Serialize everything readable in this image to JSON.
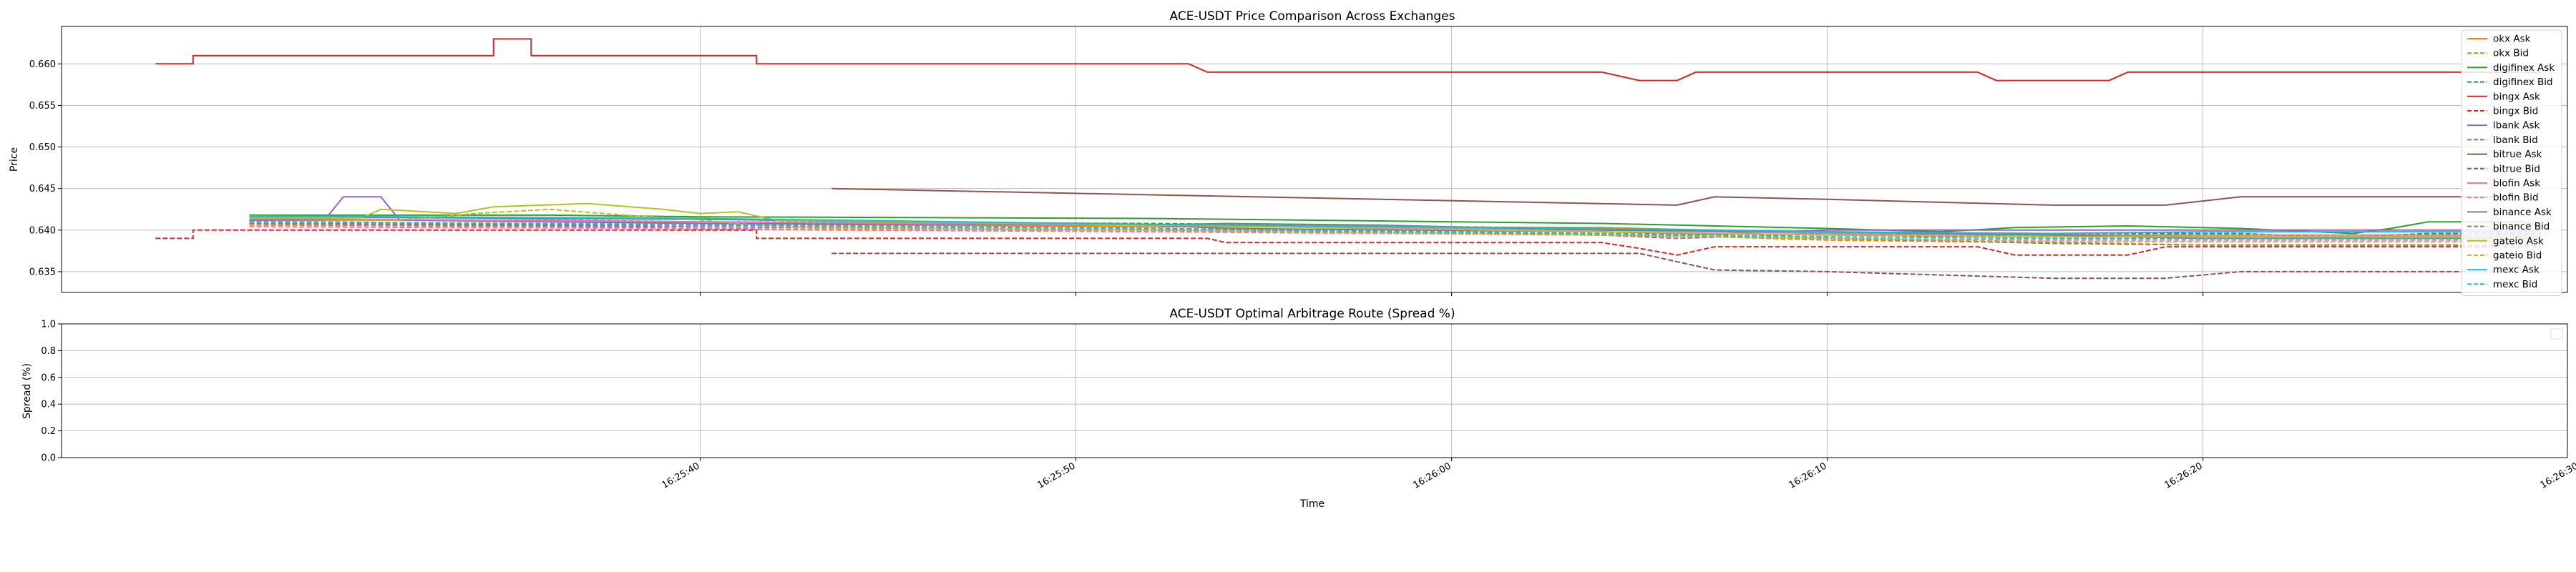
{
  "chart_data": [
    {
      "type": "line",
      "title": "ACE-USDT Price Comparison Across Exchanges",
      "xlabel": "",
      "ylabel": "Price",
      "ylim": [
        0.6325,
        0.6645
      ],
      "xlim_seconds": [
        -17,
        49.7
      ],
      "x_reference_time": "16:25:40",
      "yticks": [
        0.635,
        0.64,
        0.645,
        0.65,
        0.655,
        0.66
      ],
      "ytick_labels": [
        "0.635",
        "0.640",
        "0.645",
        "0.650",
        "0.655",
        "0.660"
      ],
      "grid": true,
      "legend_position": "right",
      "series": [
        {
          "name": "okx Ask",
          "color": "#ff7f0e",
          "dash": false,
          "points": [
            [
              -12,
              0.6412
            ],
            [
              -4,
              0.6412
            ],
            [
              0,
              0.6408
            ],
            [
              12,
              0.6404
            ],
            [
              24,
              0.6403
            ],
            [
              30,
              0.6397
            ],
            [
              36,
              0.6395
            ],
            [
              40,
              0.6392
            ],
            [
              45,
              0.6392
            ],
            [
              49,
              0.6392
            ]
          ]
        },
        {
          "name": "okx Bid",
          "color": "#ff7f0e",
          "dash": true,
          "points": [
            [
              -12,
              0.6406
            ],
            [
              -2,
              0.6404
            ],
            [
              0,
              0.6401
            ],
            [
              12,
              0.6398
            ],
            [
              24,
              0.6396
            ],
            [
              30,
              0.6388
            ],
            [
              36,
              0.6385
            ],
            [
              40,
              0.6382
            ],
            [
              45,
              0.6382
            ],
            [
              49,
              0.6382
            ]
          ]
        },
        {
          "name": "digifinex Ask",
          "color": "#2ca02c",
          "dash": false,
          "points": [
            [
              -12,
              0.6418
            ],
            [
              -4,
              0.6418
            ],
            [
              0,
              0.6416
            ],
            [
              12,
              0.6414
            ],
            [
              24,
              0.6408
            ],
            [
              30,
              0.6402
            ],
            [
              33,
              0.6398
            ],
            [
              35,
              0.6403
            ],
            [
              38,
              0.6405
            ],
            [
              41,
              0.6402
            ],
            [
              44,
              0.6396
            ],
            [
              45,
              0.6402
            ],
            [
              46,
              0.641
            ],
            [
              48.5,
              0.641
            ],
            [
              49,
              0.6405
            ]
          ]
        },
        {
          "name": "digifinex Bid",
          "color": "#2ca02c",
          "dash": true,
          "points": [
            [
              -12,
              0.6412
            ],
            [
              -4,
              0.6412
            ],
            [
              0,
              0.641
            ],
            [
              12,
              0.6408
            ],
            [
              24,
              0.6402
            ],
            [
              30,
              0.6396
            ],
            [
              33,
              0.6392
            ],
            [
              36,
              0.6396
            ],
            [
              41,
              0.6396
            ],
            [
              44,
              0.639
            ],
            [
              45,
              0.6394
            ],
            [
              46,
              0.6396
            ],
            [
              49,
              0.6396
            ]
          ]
        },
        {
          "name": "bingx Ask",
          "color": "#d62728",
          "dash": false,
          "points": [
            [
              -14.5,
              0.66
            ],
            [
              -13.5,
              0.66
            ],
            [
              -13.5,
              0.661
            ],
            [
              -10,
              0.661
            ],
            [
              -8,
              0.661
            ],
            [
              -7.5,
              0.661
            ],
            [
              -5.5,
              0.661
            ],
            [
              -5.5,
              0.663
            ],
            [
              -4.5,
              0.663
            ],
            [
              -4.5,
              0.661
            ],
            [
              1.5,
              0.661
            ],
            [
              1.5,
              0.66
            ],
            [
              13,
              0.66
            ],
            [
              13.5,
              0.659
            ],
            [
              24,
              0.659
            ],
            [
              25,
              0.658
            ],
            [
              26,
              0.658
            ],
            [
              26.5,
              0.659
            ],
            [
              34,
              0.659
            ],
            [
              34.5,
              0.658
            ],
            [
              37.5,
              0.658
            ],
            [
              38,
              0.659
            ],
            [
              49,
              0.659
            ]
          ]
        },
        {
          "name": "bingx Bid",
          "color": "#d62728",
          "dash": true,
          "points": [
            [
              -14.5,
              0.639
            ],
            [
              -13.5,
              0.639
            ],
            [
              -13.5,
              0.64
            ],
            [
              -3,
              0.64
            ],
            [
              1.5,
              0.64
            ],
            [
              1.5,
              0.639
            ],
            [
              13.5,
              0.639
            ],
            [
              14,
              0.6385
            ],
            [
              24,
              0.6385
            ],
            [
              25,
              0.6378
            ],
            [
              26,
              0.637
            ],
            [
              27,
              0.638
            ],
            [
              34,
              0.638
            ],
            [
              35,
              0.637
            ],
            [
              38,
              0.637
            ],
            [
              39,
              0.638
            ],
            [
              49,
              0.638
            ]
          ]
        },
        {
          "name": "lbank Ask",
          "color": "#9467bd",
          "dash": false,
          "points": [
            [
              -12,
              0.6412
            ],
            [
              -10,
              0.6412
            ],
            [
              -9.5,
              0.644
            ],
            [
              -8.5,
              0.644
            ],
            [
              -8,
              0.6412
            ],
            [
              0,
              0.6408
            ],
            [
              12,
              0.6406
            ],
            [
              14,
              0.6402
            ],
            [
              24,
              0.6398
            ],
            [
              27,
              0.6395
            ],
            [
              30,
              0.64
            ],
            [
              36,
              0.64
            ],
            [
              49,
              0.64
            ]
          ]
        },
        {
          "name": "lbank Bid",
          "color": "#9467bd",
          "dash": true,
          "points": [
            [
              -12,
              0.6408
            ],
            [
              0,
              0.6404
            ],
            [
              12,
              0.64
            ],
            [
              24,
              0.6394
            ],
            [
              26,
              0.639
            ],
            [
              30,
              0.6396
            ],
            [
              34,
              0.6394
            ],
            [
              36,
              0.6394
            ],
            [
              49,
              0.6394
            ]
          ]
        },
        {
          "name": "bitrue Ask",
          "color": "#8c564b",
          "dash": false,
          "points": [
            [
              3.5,
              0.645
            ],
            [
              26,
              0.643
            ],
            [
              27,
              0.644
            ],
            [
              30,
              0.6437
            ],
            [
              36,
              0.643
            ],
            [
              39,
              0.643
            ],
            [
              41,
              0.644
            ],
            [
              48,
              0.644
            ]
          ]
        },
        {
          "name": "bitrue Bid",
          "color": "#8c564b",
          "dash": true,
          "points": [
            [
              3.5,
              0.6372
            ],
            [
              25,
              0.6372
            ],
            [
              27,
              0.6352
            ],
            [
              30,
              0.635
            ],
            [
              36,
              0.6342
            ],
            [
              39,
              0.6342
            ],
            [
              41,
              0.635
            ],
            [
              48,
              0.635
            ]
          ]
        },
        {
          "name": "blofin Ask",
          "color": "#e377c2",
          "dash": false,
          "points": [
            [
              -12,
              0.6414
            ],
            [
              0,
              0.641
            ],
            [
              12,
              0.6406
            ],
            [
              24,
              0.64
            ],
            [
              30,
              0.6396
            ],
            [
              36,
              0.6394
            ],
            [
              49,
              0.6394
            ]
          ]
        },
        {
          "name": "blofin Bid",
          "color": "#e377c2",
          "dash": true,
          "points": [
            [
              -12,
              0.6404
            ],
            [
              0,
              0.6402
            ],
            [
              12,
              0.6398
            ],
            [
              24,
              0.6394
            ],
            [
              30,
              0.639
            ],
            [
              36,
              0.6388
            ],
            [
              49,
              0.6388
            ]
          ]
        },
        {
          "name": "binance Ask",
          "color": "#7f7f7f",
          "dash": false,
          "points": [
            [
              -12,
              0.6416
            ],
            [
              0,
              0.6413
            ],
            [
              12,
              0.6406
            ],
            [
              14,
              0.6408
            ],
            [
              18,
              0.6406
            ],
            [
              24,
              0.64
            ],
            [
              30,
              0.6398
            ],
            [
              36,
              0.6394
            ],
            [
              40,
              0.639
            ],
            [
              49,
              0.639
            ]
          ]
        },
        {
          "name": "binance Bid",
          "color": "#7f7f7f",
          "dash": true,
          "points": [
            [
              -12,
              0.6408
            ],
            [
              0,
              0.6406
            ],
            [
              12,
              0.6402
            ],
            [
              24,
              0.6394
            ],
            [
              30,
              0.639
            ],
            [
              36,
              0.6384
            ],
            [
              40,
              0.6382
            ],
            [
              49,
              0.6382
            ]
          ]
        },
        {
          "name": "gateio Ask",
          "color": "#bcbd22",
          "dash": false,
          "points": [
            [
              -12,
              0.6415
            ],
            [
              -9,
              0.6415
            ],
            [
              -8.5,
              0.6425
            ],
            [
              -6.5,
              0.642
            ],
            [
              -5.5,
              0.6428
            ],
            [
              -3,
              0.6432
            ],
            [
              -1,
              0.6425
            ],
            [
              0,
              0.642
            ],
            [
              1,
              0.6422
            ],
            [
              2,
              0.6412
            ],
            [
              12,
              0.6406
            ],
            [
              24,
              0.6398
            ],
            [
              30,
              0.6394
            ],
            [
              36,
              0.6392
            ],
            [
              49,
              0.6392
            ]
          ]
        },
        {
          "name": "gateio Bid",
          "color": "#bcbd22",
          "dash": true,
          "points": [
            [
              -12,
              0.641
            ],
            [
              -8,
              0.6412
            ],
            [
              -6,
              0.642
            ],
            [
              -4,
              0.6425
            ],
            [
              -2,
              0.6418
            ],
            [
              0,
              0.6412
            ],
            [
              2,
              0.6404
            ],
            [
              12,
              0.64
            ],
            [
              24,
              0.6394
            ],
            [
              30,
              0.639
            ],
            [
              36,
              0.6386
            ],
            [
              49,
              0.6386
            ]
          ]
        },
        {
          "name": "mexc Ask",
          "color": "#17becf",
          "dash": false,
          "points": [
            [
              -12,
              0.6417
            ],
            [
              0,
              0.6414
            ],
            [
              12,
              0.6407
            ],
            [
              24,
              0.6402
            ],
            [
              30,
              0.6398
            ],
            [
              36,
              0.6396
            ],
            [
              40,
              0.6398
            ],
            [
              49,
              0.6398
            ]
          ]
        },
        {
          "name": "mexc Bid",
          "color": "#17becf",
          "dash": true,
          "points": [
            [
              -12,
              0.641
            ],
            [
              0,
              0.6407
            ],
            [
              12,
              0.6402
            ],
            [
              24,
              0.6396
            ],
            [
              30,
              0.6392
            ],
            [
              36,
              0.639
            ],
            [
              49,
              0.639
            ]
          ]
        }
      ]
    },
    {
      "type": "line",
      "title": "ACE-USDT Optimal Arbitrage Route (Spread %)",
      "xlabel": "Time",
      "ylabel": "Spread (%)",
      "ylim": [
        0.0,
        1.0
      ],
      "yticks": [
        0.0,
        0.2,
        0.4,
        0.6,
        0.8,
        1.0
      ],
      "ytick_labels": [
        "0.0",
        "0.2",
        "0.4",
        "0.6",
        "0.8",
        "1.0"
      ],
      "xticks_seconds": [
        0,
        10,
        20,
        30,
        40,
        50
      ],
      "xtick_labels": [
        "16:25:40",
        "16:25:50",
        "16:26:00",
        "16:26:10",
        "16:26:20",
        "16:26:30"
      ],
      "grid": true,
      "series": []
    }
  ]
}
